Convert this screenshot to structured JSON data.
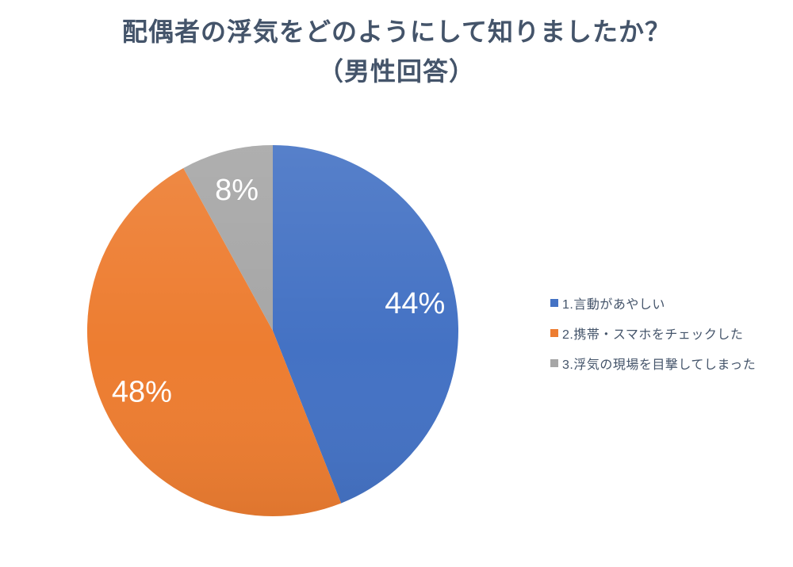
{
  "title": {
    "line1": "配偶者の浮気をどのようにして知りましたか？",
    "line2": "（男性回答）",
    "color": "#44546A"
  },
  "chart_data": {
    "type": "pie",
    "title": "配偶者の浮気をどのようにして知りましたか？（男性回答）",
    "categories": [
      "1.言動があやしい",
      "2.携帯・スマホをチェックした",
      "3.浮気の現場を目撃してしまった"
    ],
    "values": [
      44,
      48,
      8
    ],
    "unit": "%",
    "slice_labels": [
      "44%",
      "48%",
      "8%"
    ],
    "colors": [
      "#4472C4",
      "#ED7D31",
      "#A6A6A6"
    ],
    "start_angle_deg": 0,
    "direction": "clockwise",
    "legend_position": "right",
    "data_label_color": "#FFFFFF",
    "background": "#FFFFFF"
  },
  "legend": {
    "items": [
      {
        "label": "1.言動があやしい",
        "color": "#4472C4"
      },
      {
        "label": "2.携帯・スマホをチェックした",
        "color": "#ED7D31"
      },
      {
        "label": "3.浮気の現場を目撃してしまった",
        "color": "#A6A6A6"
      }
    ],
    "text_color": "#44546A"
  }
}
